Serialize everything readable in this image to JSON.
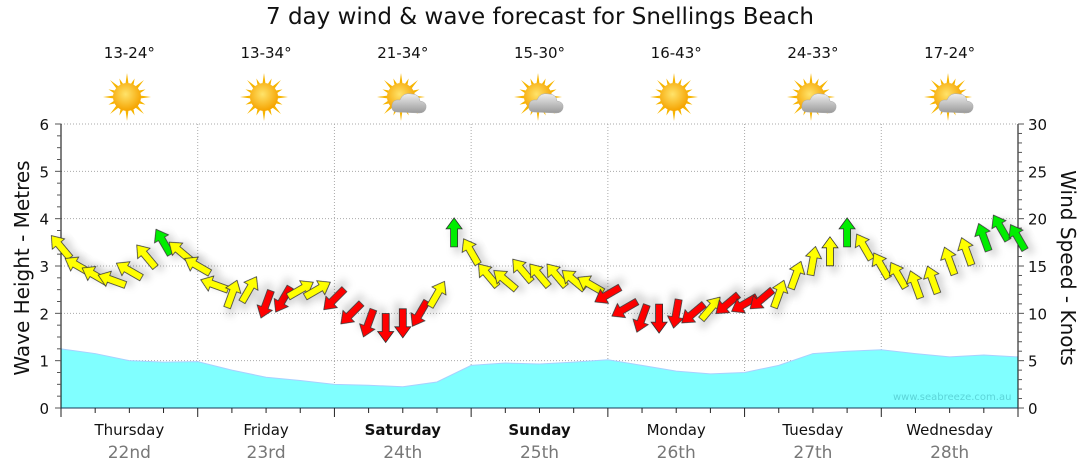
{
  "chart_data": {
    "type": "area+arrows",
    "title": "7 day wind & wave forecast for Snellings Beach",
    "ylabel_left": "Wave Height - Metres",
    "ylabel_right": "Wind Speed - Knots",
    "ylim_left": [
      0,
      6
    ],
    "ylim_right": [
      0,
      30
    ],
    "yticks_left": [
      "0",
      "1",
      "2",
      "3",
      "4",
      "5",
      "6"
    ],
    "yticks_right": [
      "0",
      "5",
      "10",
      "15",
      "20",
      "25",
      "30"
    ],
    "grid": true,
    "watermark": "www.seabreeze.com.au",
    "days": [
      {
        "name": "Thursday",
        "date": "22nd",
        "temp": "13-24°",
        "icon": "sunny-icon",
        "bold": false
      },
      {
        "name": "Friday",
        "date": "23rd",
        "temp": "13-34°",
        "icon": "sunny-icon",
        "bold": false
      },
      {
        "name": "Saturday",
        "date": "24th",
        "temp": "21-34°",
        "icon": "partly-cloudy-icon",
        "bold": true
      },
      {
        "name": "Sunday",
        "date": "25th",
        "temp": "15-30°",
        "icon": "partly-cloudy-icon",
        "bold": true
      },
      {
        "name": "Monday",
        "date": "26th",
        "temp": "16-43°",
        "icon": "sunny-icon",
        "bold": false
      },
      {
        "name": "Tuesday",
        "date": "27th",
        "temp": "24-33°",
        "icon": "partly-cloudy-icon",
        "bold": false
      },
      {
        "name": "Wednesday",
        "date": "28th",
        "temp": "17-24°",
        "icon": "partly-cloudy-icon",
        "bold": false
      }
    ],
    "wave_interval_hours": 6,
    "wave_height_m": [
      1.25,
      1.15,
      1.0,
      0.97,
      0.98,
      0.8,
      0.65,
      0.58,
      0.5,
      0.48,
      0.45,
      0.55,
      0.9,
      0.95,
      0.93,
      0.97,
      1.02,
      0.9,
      0.78,
      0.72,
      0.75,
      0.9,
      1.15,
      1.2,
      1.23,
      1.15,
      1.08,
      1.12,
      1.08
    ],
    "wind_interval_hours": 3,
    "wind_speed_kn": [
      17,
      15,
      14,
      13.5,
      14.5,
      16,
      17.5,
      16.5,
      15,
      13,
      12,
      12.5,
      11,
      11.5,
      12.5,
      12.5,
      11.5,
      10,
      9,
      8.5,
      9,
      10,
      12,
      18.5,
      16.5,
      14,
      13.5,
      14.5,
      14,
      14,
      13.5,
      13,
      12,
      10.5,
      9.5,
      9.5,
      10,
      10,
      10.5,
      11,
      11,
      11.5,
      12,
      14,
      15.5,
      16.5,
      18.5,
      17,
      15,
      14,
      13,
      13.5,
      15.5,
      16.5,
      18,
      19,
      18
    ],
    "wind_arrow_dir_deg": [
      320,
      300,
      300,
      290,
      300,
      320,
      330,
      310,
      300,
      290,
      20,
      30,
      200,
      210,
      60,
      60,
      225,
      225,
      200,
      180,
      180,
      210,
      30,
      0,
      330,
      320,
      310,
      320,
      320,
      320,
      310,
      300,
      240,
      240,
      200,
      180,
      190,
      230,
      40,
      230,
      240,
      230,
      20,
      20,
      10,
      0,
      0,
      330,
      330,
      330,
      340,
      340,
      340,
      340,
      340,
      330,
      330
    ],
    "wind_category": [
      "y",
      "y",
      "y",
      "y",
      "y",
      "y",
      "g",
      "y",
      "y",
      "y",
      "y",
      "y",
      "r",
      "r",
      "y",
      "y",
      "r",
      "r",
      "r",
      "r",
      "r",
      "r",
      "y",
      "g",
      "y",
      "y",
      "y",
      "y",
      "y",
      "y",
      "y",
      "y",
      "r",
      "r",
      "r",
      "r",
      "r",
      "r",
      "y",
      "r",
      "r",
      "r",
      "y",
      "y",
      "y",
      "y",
      "g",
      "y",
      "y",
      "y",
      "y",
      "y",
      "y",
      "y",
      "g",
      "g",
      "g"
    ],
    "colors": {
      "y": "#ffff00",
      "r": "#ff0000",
      "g": "#00ee00",
      "wave": "#80ffff",
      "wave_line": "#a8d0ff"
    }
  }
}
